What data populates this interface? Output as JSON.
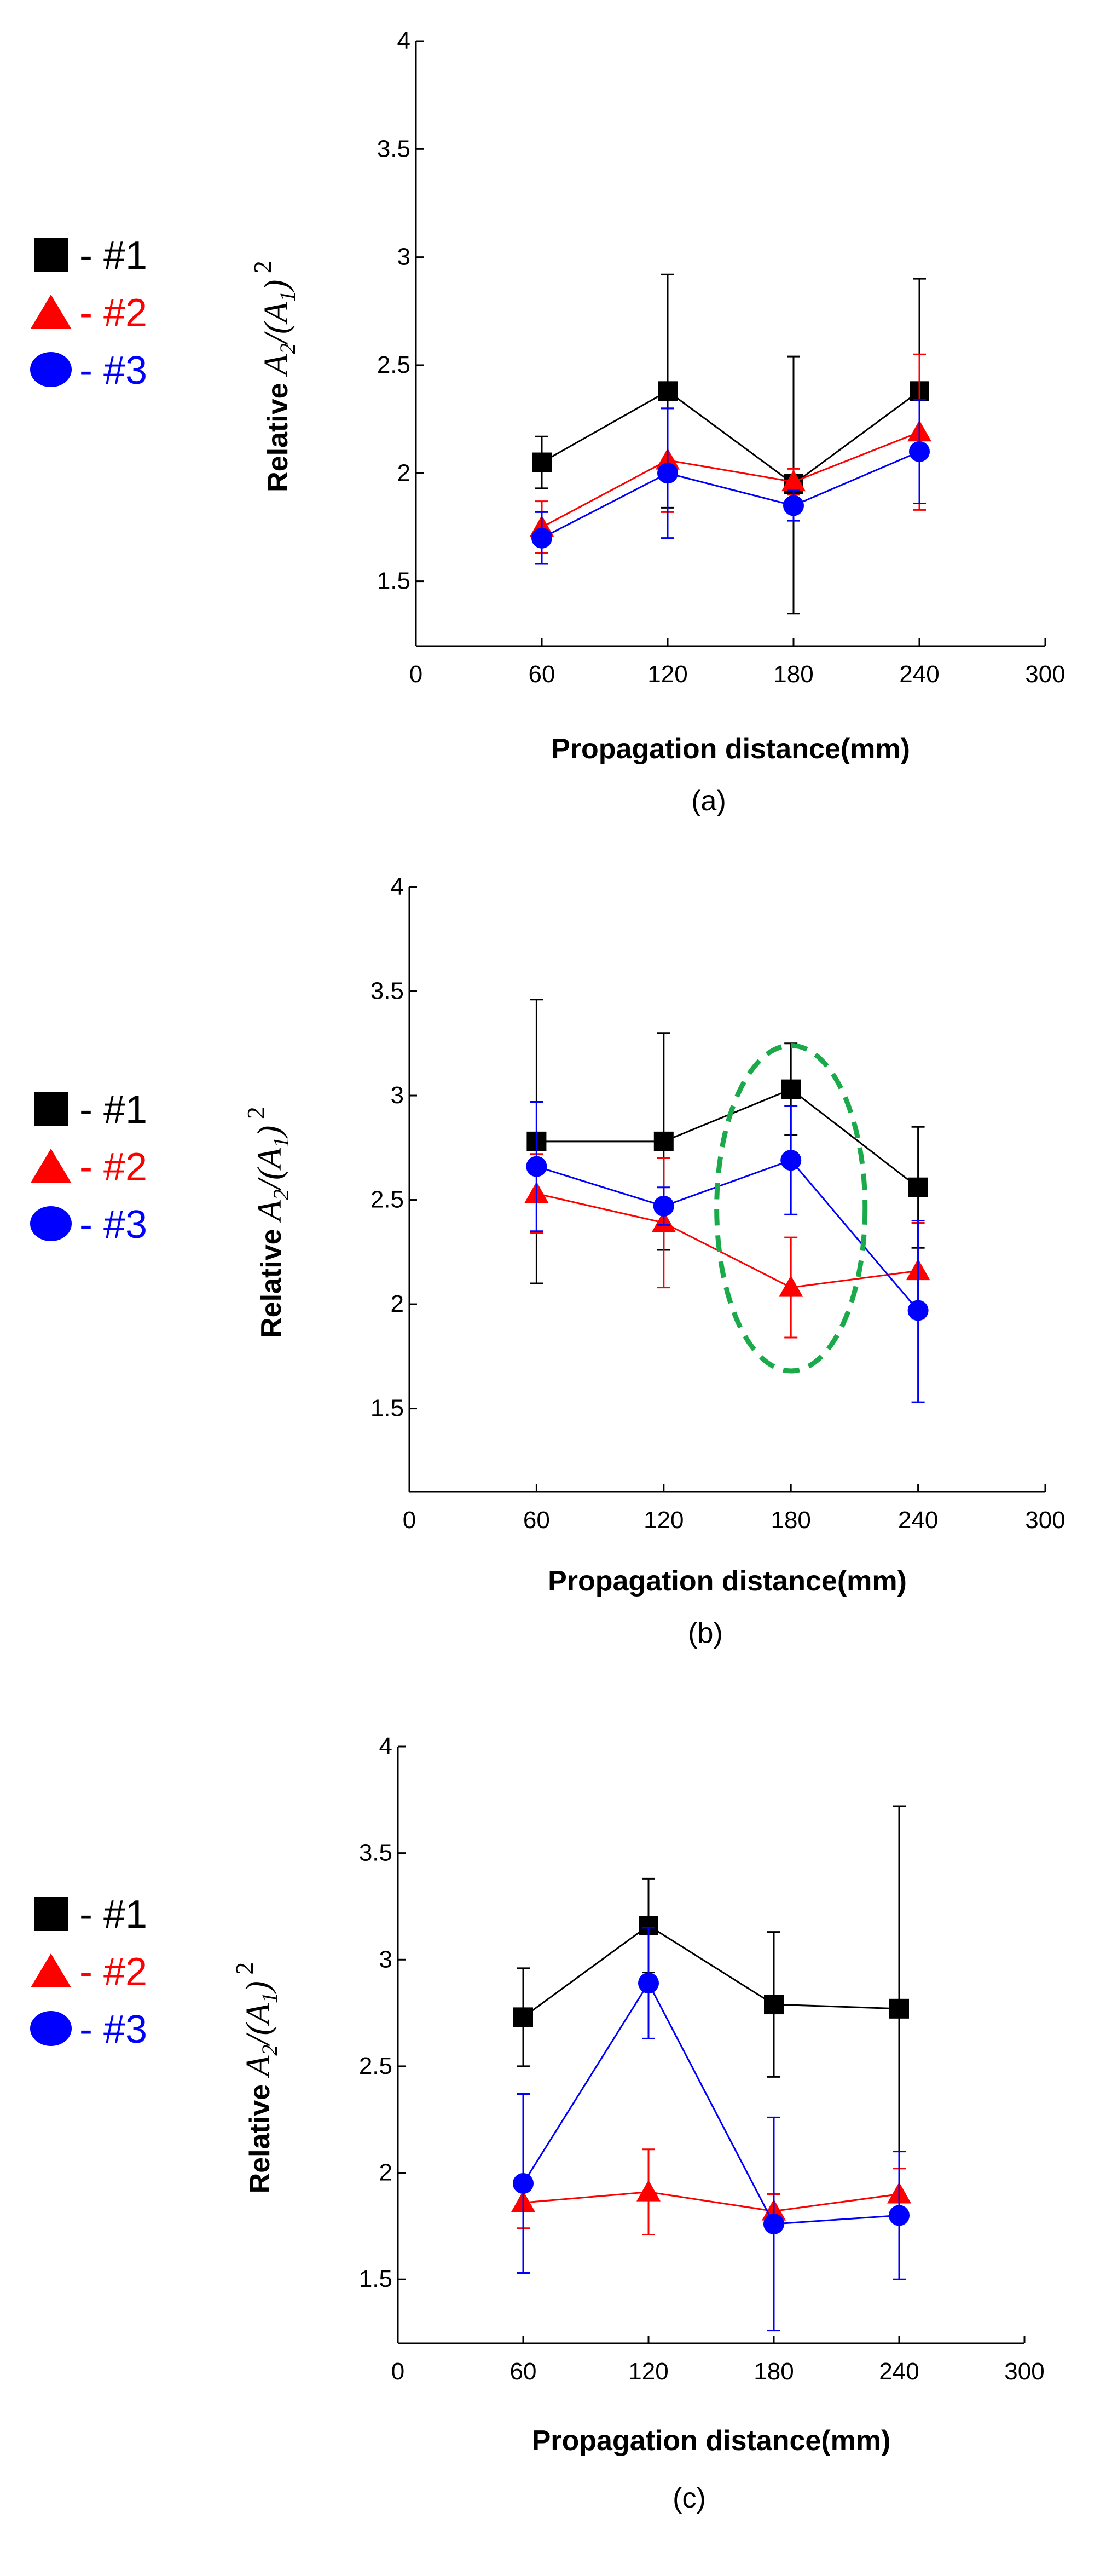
{
  "chart_data": [
    {
      "type": "line",
      "panel": "(a)",
      "xlabel": "Propagation distance(mm)",
      "ylabel": {
        "prefix": "Relative ",
        "A": "A",
        "sub2": "2",
        "slash": "/(",
        "sub1": "1",
        "close": ")",
        "sup": "2"
      },
      "xlim": [
        0,
        300
      ],
      "ylim": [
        1.2,
        4
      ],
      "xticks": [
        0,
        60,
        120,
        180,
        240,
        300
      ],
      "yticks": [
        1.5,
        2,
        2.5,
        3,
        3.5,
        4
      ],
      "ytick_labels": [
        "1.5",
        "2",
        "2.5",
        "3",
        "3.5",
        "4"
      ],
      "x": [
        60,
        120,
        180,
        240
      ],
      "series": [
        {
          "name": "#1",
          "color": "#000000",
          "marker": "square",
          "values": [
            2.05,
            2.38,
            1.95,
            2.38
          ],
          "err_high": [
            2.17,
            2.92,
            2.54,
            2.9
          ],
          "err_low": [
            1.93,
            1.84,
            1.35,
            1.86
          ]
        },
        {
          "name": "#2",
          "color": "#ff0000",
          "marker": "triangle",
          "values": [
            1.75,
            2.06,
            1.96,
            2.19
          ],
          "err_high": [
            1.87,
            2.3,
            2.02,
            2.55
          ],
          "err_low": [
            1.63,
            1.82,
            1.9,
            1.83
          ]
        },
        {
          "name": "#3",
          "color": "#0000ff",
          "marker": "circle",
          "values": [
            1.7,
            2.0,
            1.85,
            2.1
          ],
          "err_high": [
            1.82,
            2.3,
            1.92,
            2.34
          ],
          "err_low": [
            1.58,
            1.7,
            1.78,
            1.86
          ]
        }
      ],
      "annotation": null
    },
    {
      "type": "line",
      "panel": "(b)",
      "xlabel": "Propagation distance(mm)",
      "ylabel": {
        "prefix": "Relative ",
        "A": "A",
        "sub2": "2",
        "slash": "/(",
        "sub1": "1",
        "close": ")",
        "sup": "2"
      },
      "xlim": [
        0,
        300
      ],
      "ylim": [
        1.1,
        4
      ],
      "xticks": [
        0,
        60,
        120,
        180,
        240,
        300
      ],
      "yticks": [
        1.5,
        2,
        2.5,
        3,
        3.5,
        4
      ],
      "ytick_labels": [
        "1.5",
        "2",
        "2.5",
        "3",
        "3.5",
        "4"
      ],
      "x": [
        60,
        120,
        180,
        240
      ],
      "series": [
        {
          "name": "#1",
          "color": "#000000",
          "marker": "square",
          "values": [
            2.78,
            2.78,
            3.03,
            2.56
          ],
          "err_high": [
            3.46,
            3.3,
            3.25,
            2.85
          ],
          "err_low": [
            2.1,
            2.26,
            2.81,
            2.27
          ]
        },
        {
          "name": "#2",
          "color": "#ff0000",
          "marker": "triangle",
          "values": [
            2.53,
            2.39,
            2.08,
            2.16
          ],
          "err_high": [
            2.72,
            2.7,
            2.32,
            2.39
          ],
          "err_low": [
            2.34,
            2.08,
            1.84,
            1.93
          ]
        },
        {
          "name": "#3",
          "color": "#0000ff",
          "marker": "circle",
          "values": [
            2.66,
            2.47,
            2.69,
            1.97
          ],
          "err_high": [
            2.97,
            2.56,
            2.95,
            2.4
          ],
          "err_low": [
            2.35,
            2.38,
            2.43,
            1.53
          ]
        }
      ],
      "annotation": {
        "shape": "dashed-ellipse",
        "color": "#1aaa4a",
        "center_x": 180,
        "center_y": 2.46,
        "half_width_x": 35,
        "half_height_y": 0.78
      }
    },
    {
      "type": "line",
      "panel": "(c)",
      "xlabel": "Propagation distance(mm)",
      "ylabel": {
        "prefix": "Relative ",
        "A": "A",
        "sub2": "2",
        "slash": "/(",
        "sub1": "1",
        "close": ")",
        "sup": "2"
      },
      "xlim": [
        0,
        300
      ],
      "ylim": [
        1.2,
        4
      ],
      "xticks": [
        0,
        60,
        120,
        180,
        240,
        300
      ],
      "yticks": [
        1.5,
        2,
        2.5,
        3,
        3.5,
        4
      ],
      "ytick_labels": [
        "1.5",
        "2",
        "2.5",
        "3",
        "3.5",
        "4"
      ],
      "x": [
        60,
        120,
        180,
        240
      ],
      "series": [
        {
          "name": "#1",
          "color": "#000000",
          "marker": "square",
          "values": [
            2.73,
            3.16,
            2.79,
            2.77
          ],
          "err_high": [
            2.96,
            3.38,
            3.13,
            3.72
          ],
          "err_low": [
            2.5,
            2.94,
            2.45,
            1.82
          ]
        },
        {
          "name": "#2",
          "color": "#ff0000",
          "marker": "triangle",
          "values": [
            1.86,
            1.91,
            1.82,
            1.9
          ],
          "err_high": [
            1.98,
            2.11,
            1.9,
            2.02
          ],
          "err_low": [
            1.74,
            1.71,
            1.74,
            1.78
          ]
        },
        {
          "name": "#3",
          "color": "#0000ff",
          "marker": "circle",
          "values": [
            1.95,
            2.89,
            1.76,
            1.8
          ],
          "err_high": [
            2.37,
            3.15,
            2.26,
            2.1
          ],
          "err_low": [
            1.53,
            2.63,
            1.26,
            1.5
          ]
        }
      ],
      "annotation": null
    }
  ]
}
